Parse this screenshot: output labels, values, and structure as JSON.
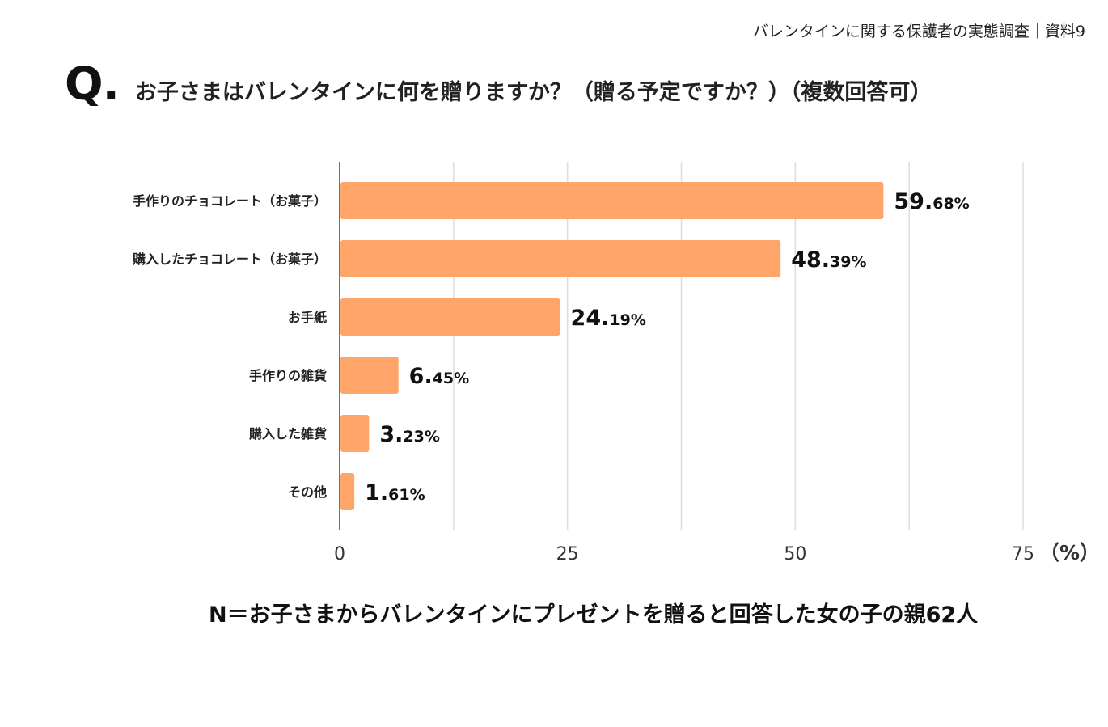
{
  "header": {
    "note": "バレンタインに関する保護者の実態調査｜資料9"
  },
  "question": {
    "mark": "Q.",
    "text": "お子さまはバレンタインに何を贈りますか？（贈る予定ですか？）（複数回答可）"
  },
  "footnote": "N＝お子さまからバレンタインにプレゼントを贈ると回答した女の子の親62人",
  "colors": {
    "bar": "#ffa56a",
    "grid": "#dddddd",
    "axis": "#444444",
    "tick_text": "#333333"
  },
  "chart_data": {
    "type": "bar",
    "orientation": "horizontal",
    "categories": [
      "手作りのチョコレート（お菓子）",
      "購入したチョコレート（お菓子）",
      "お手紙",
      "手作りの雑貨",
      "購入した雑貨",
      "その他"
    ],
    "values": [
      59.68,
      48.39,
      24.19,
      6.45,
      3.23,
      1.61
    ],
    "value_labels": [
      {
        "int": "59.",
        "dec": "68%"
      },
      {
        "int": "48.",
        "dec": "39%"
      },
      {
        "int": "24.",
        "dec": "19%"
      },
      {
        "int": "6.",
        "dec": "45%"
      },
      {
        "int": "3.",
        "dec": "23%"
      },
      {
        "int": "1.",
        "dec": "61%"
      }
    ],
    "xlim": [
      0,
      75
    ],
    "ticks": [
      0,
      25,
      50,
      75
    ],
    "tick_labels": [
      "0",
      "25",
      "50",
      "75"
    ],
    "unit": "（%）",
    "grid": true,
    "minor_grid_step": 12.5
  }
}
